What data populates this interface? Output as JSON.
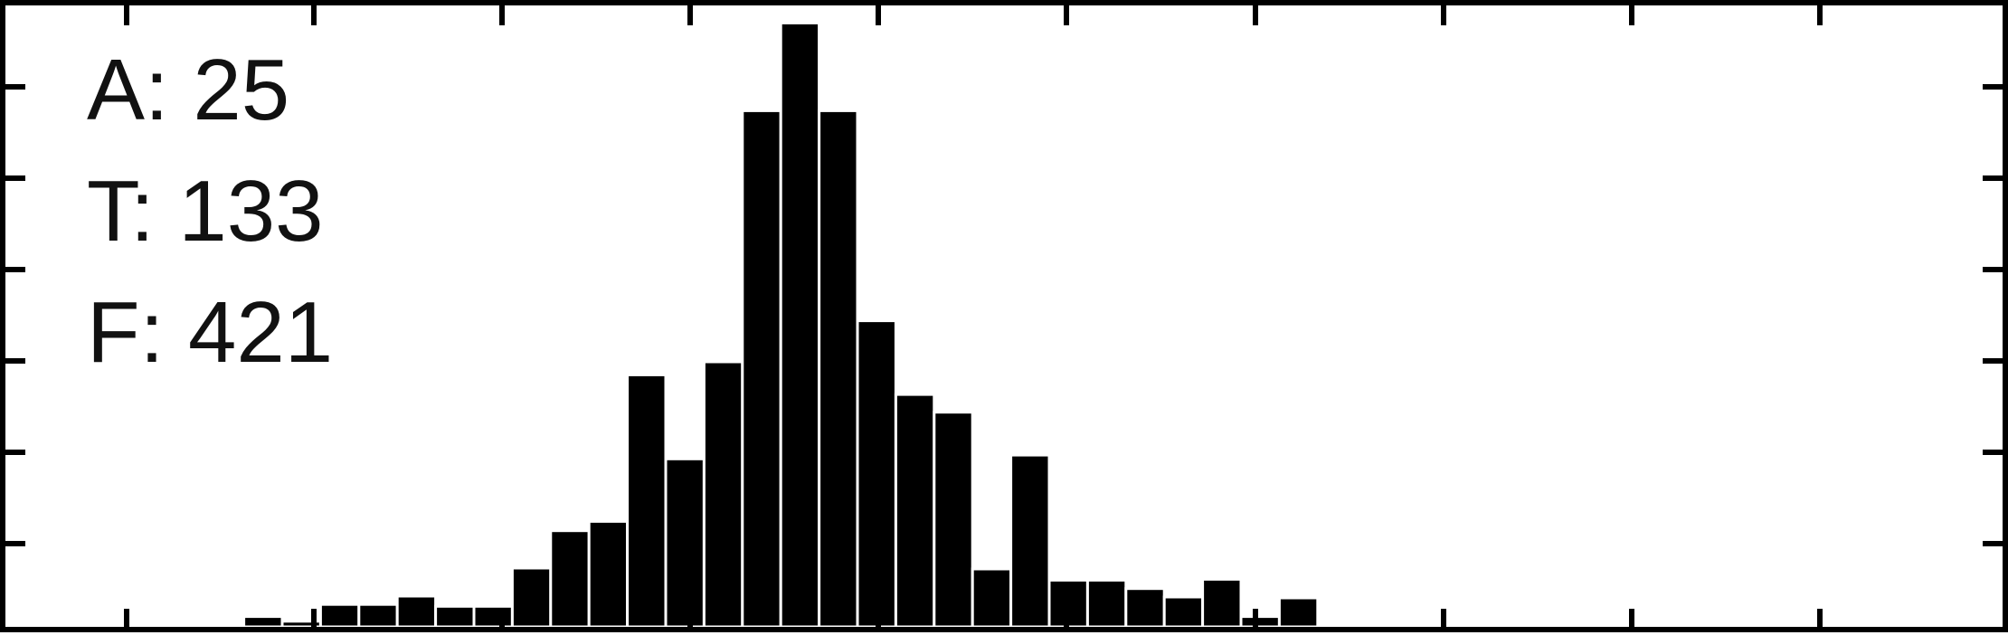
{
  "chart_data": {
    "type": "bar",
    "title": "",
    "xlabel": "",
    "ylabel": "",
    "annotations": [
      "A: 25",
      "T: 133",
      "F: 421"
    ],
    "bins": 51,
    "values": [
      0,
      0,
      0,
      0,
      1.1,
      0.6,
      2.4,
      2.4,
      3.3,
      2.2,
      2.2,
      6.3,
      10.3,
      11.3,
      27.0,
      18.0,
      28.4,
      55.3,
      64.7,
      55.3,
      32.8,
      24.9,
      23.0,
      6.2,
      18.4,
      5.0,
      5.0,
      4.1,
      3.2,
      5.1,
      1.1,
      3.1,
      0,
      0,
      0,
      0,
      0,
      0,
      0,
      0,
      0,
      0,
      0,
      0,
      0,
      0,
      0,
      0,
      0,
      0,
      0
    ],
    "ylim": [
      0,
      66
    ],
    "grid": false,
    "colors": {
      "bar": "#000000",
      "bar_edge": "#ffffff",
      "axis": "#000000",
      "background": "#ffffff"
    }
  }
}
